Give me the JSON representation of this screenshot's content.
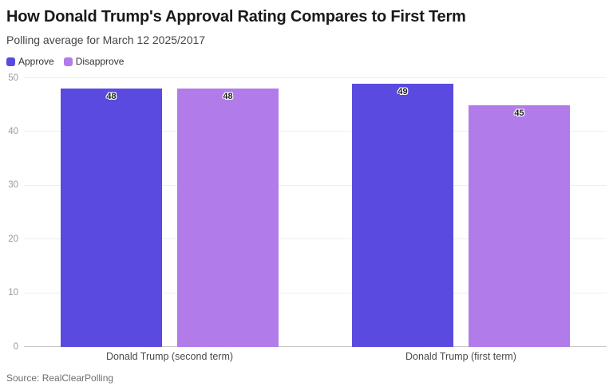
{
  "header": {
    "title": "How Donald Trump's Approval Rating Compares to First Term",
    "subtitle": "Polling average for March 12 2025/2017"
  },
  "legend": {
    "items": [
      {
        "label": "Approve",
        "color": "#5b4ae0"
      },
      {
        "label": "Disapprove",
        "color": "#b17cea"
      }
    ]
  },
  "chart_data": {
    "type": "bar",
    "title": "How Donald Trump's Approval Rating Compares to First Term",
    "subtitle": "Polling average for March 12 2025/2017",
    "categories": [
      "Donald Trump (second term)",
      "Donald Trump (first term)"
    ],
    "series": [
      {
        "name": "Approve",
        "color": "#5b4ae0",
        "values": [
          48,
          49
        ]
      },
      {
        "name": "Disapprove",
        "color": "#b17cea",
        "values": [
          48,
          45
        ]
      }
    ],
    "xlabel": "",
    "ylabel": "",
    "ylim": [
      0,
      50
    ],
    "yticks": [
      0,
      10,
      20,
      30,
      40,
      50
    ],
    "grid": true,
    "legend_position": "top-left",
    "gridline_color": "#efefef",
    "baseline_color": "#c9c9c9",
    "tick_label_color": "#9a9a9a"
  },
  "footer": {
    "source": "Source: RealClearPolling"
  }
}
